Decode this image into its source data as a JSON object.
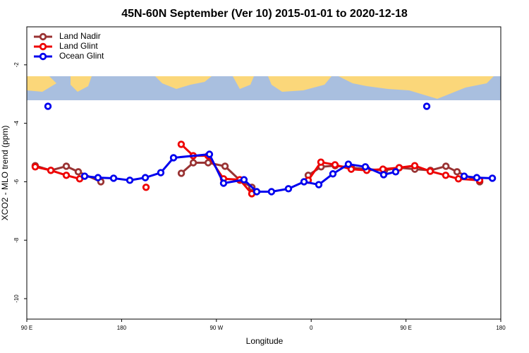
{
  "chart_data": {
    "type": "line",
    "title": "45N-60N September (Ver 10)   2015-01-01 to 2020-12-18",
    "x_label": "Longitude",
    "y_label": "XCO2 - MLO trend (ppm)",
    "xlim": [
      90,
      540
    ],
    "ylim": [
      -10.7,
      -0.7
    ],
    "xticks": [
      {
        "value": 90,
        "label": "90 E"
      },
      180,
      {
        "value": 270,
        "label": "90 W"
      },
      {
        "value": 360,
        "label": "0"
      },
      {
        "value": 450,
        "label": "90 E"
      },
      {
        "value": 540,
        "label": "180"
      }
    ],
    "yticks": [
      -2,
      -4,
      -6,
      -8,
      -10
    ],
    "legend": "top-left",
    "series": [
      {
        "name": "Land Nadir",
        "color": "#993333",
        "x": [
          98.0,
          112.8,
          127.5,
          138.9,
          160.3,
          null,
          236.7,
          248.1,
          262.2,
          278.2,
          292.3,
          303.7,
          null,
          357.2,
          369.4,
          382.8,
          398.1,
          412.9,
          429.6,
          443.6,
          458.4,
          473.2,
          487.9,
          498.5,
          520.0
        ],
        "values": [
          -5.45,
          -5.61,
          -5.47,
          -5.66,
          -6.0,
          null,
          -5.71,
          -5.35,
          -5.35,
          -5.47,
          -5.95,
          -6.19,
          null,
          -5.78,
          -5.49,
          -5.45,
          -5.52,
          -5.57,
          -5.61,
          -5.52,
          -5.57,
          -5.61,
          -5.47,
          -5.66,
          -6.0
        ]
      },
      {
        "name": "Land Glint",
        "color": "#ee0000",
        "x": [
          98.0,
          112.8,
          127.5,
          140.2,
          null,
          203.2,
          null,
          236.6,
          248.0,
          262.1,
          276.8,
          292.2,
          303.6,
          null,
          357.2,
          369.2,
          382.6,
          398.0,
          412.7,
          428.1,
          443.5,
          458.3,
          473.0,
          487.7,
          499.8,
          519.9
        ],
        "values": [
          -5.49,
          -5.61,
          -5.78,
          -5.9,
          null,
          -6.19,
          null,
          -4.72,
          -5.11,
          -5.11,
          -5.9,
          -5.93,
          -6.41,
          null,
          -5.95,
          -5.33,
          -5.42,
          -5.57,
          -5.61,
          -5.57,
          -5.52,
          -5.45,
          -5.64,
          -5.78,
          -5.9,
          -5.95
        ]
      },
      {
        "name": "Ocean Glint",
        "color": "#0000ee",
        "x": [
          110.1,
          null,
          144.9,
          157.6,
          172.4,
          187.8,
          202.5,
          217.2,
          229.3,
          263.4,
          276.8,
          296.2,
          308.3,
          322.3,
          338.4,
          353.2,
          367.2,
          380.6,
          395.3,
          411.4,
          428.8,
          440.2,
          null,
          469.7,
          null,
          505.2,
          517.2,
          532.0
        ],
        "values": [
          -3.42,
          null,
          -5.81,
          -5.86,
          -5.88,
          -5.95,
          -5.86,
          -5.69,
          -5.18,
          -5.06,
          -6.05,
          -5.93,
          -6.34,
          -6.34,
          -6.24,
          -6.0,
          -6.1,
          -5.73,
          -5.4,
          -5.49,
          -5.76,
          -5.66,
          null,
          -3.42,
          null,
          -5.81,
          -5.86,
          -5.88
        ]
      }
    ]
  }
}
